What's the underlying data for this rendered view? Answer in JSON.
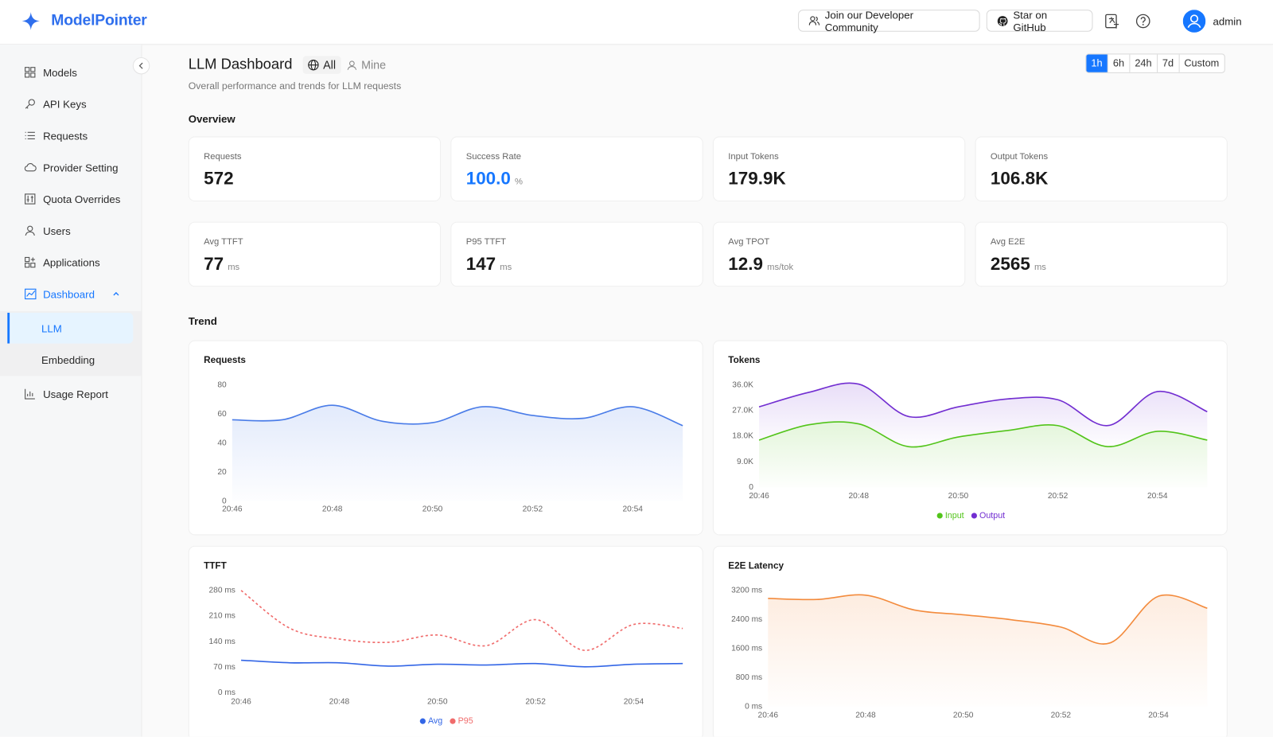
{
  "header": {
    "brand": "ModelPointer",
    "buttons": [
      "Join our Developer Community",
      "Star on GitHub"
    ],
    "user": "admin"
  },
  "sidebar": {
    "items": [
      "Models",
      "API Keys",
      "Requests",
      "Provider Setting",
      "Quota Overrides",
      "Users",
      "Applications",
      "Dashboard"
    ],
    "sub_items": [
      "LLM",
      "Embedding"
    ],
    "bottom_items": [
      "Usage Report"
    ]
  },
  "page": {
    "title": "LLM Dashboard",
    "scopes": [
      "All",
      "Mine"
    ],
    "subtitle": "Overall performance and trends for LLM requests",
    "ranges": [
      "1h",
      "6h",
      "24h",
      "7d",
      "Custom"
    ]
  },
  "overview": {
    "title": "Overview",
    "cards": [
      {
        "label": "Requests",
        "value": "572"
      },
      {
        "label": "Success Rate",
        "value": "100.0",
        "unit": "%",
        "color": "#1677ff"
      },
      {
        "label": "Input Tokens",
        "value": "179.9K"
      },
      {
        "label": "Output Tokens",
        "value": "106.8K"
      },
      {
        "label": "Avg TTFT",
        "value": "77",
        "unit": "ms"
      },
      {
        "label": "P95 TTFT",
        "value": "147",
        "unit": "ms"
      },
      {
        "label": "Avg TPOT",
        "value": "12.9",
        "unit": "ms/tok"
      },
      {
        "label": "Avg E2E",
        "value": "2565",
        "unit": "ms"
      }
    ]
  },
  "trend": {
    "title": "Trend"
  },
  "chart_data": [
    {
      "type": "line",
      "title": "Requests",
      "area": true,
      "categories": [
        "20:46",
        null,
        "20:48",
        null,
        "20:50",
        null,
        "20:52",
        null,
        "20:54",
        null
      ],
      "values": [
        56,
        56,
        66,
        55,
        54,
        65,
        59,
        57,
        65,
        52
      ],
      "color": "#4a7ce8",
      "ylim": [
        0,
        80
      ],
      "yticks": [
        0,
        20,
        40,
        60,
        80
      ],
      "grid": false
    },
    {
      "type": "line",
      "title": "Tokens",
      "area": true,
      "stacked": true,
      "legend": "bottom",
      "categories": [
        "20:46",
        null,
        "20:48",
        null,
        "20:50",
        null,
        "20:52",
        null,
        "20:54",
        null
      ],
      "series": [
        {
          "name": "Input",
          "color": "#52c41a",
          "values": [
            16600,
            22000,
            22300,
            14300,
            17700,
            20000,
            21700,
            14300,
            19700,
            16600
          ]
        },
        {
          "name": "Output",
          "color": "#722ed1",
          "values": [
            11700,
            11400,
            14000,
            10600,
            10600,
            11100,
            9100,
            7400,
            14000,
            10000
          ]
        }
      ],
      "ylim": [
        0,
        36000
      ],
      "yticks": [
        0,
        {
          "value": 9000,
          "label": "9.0K"
        },
        {
          "value": 18000,
          "label": "18.0K"
        },
        {
          "value": 27000,
          "label": "27.0K"
        },
        {
          "value": 36000,
          "label": "36.0K"
        }
      ],
      "grid": false
    },
    {
      "type": "line",
      "title": "TTFT",
      "area": false,
      "legend": "bottom",
      "categories": [
        "20:46",
        null,
        "20:48",
        null,
        "20:50",
        null,
        "20:52",
        null,
        "20:54",
        null
      ],
      "series": [
        {
          "name": "Avg",
          "color": "#3366e6",
          "values": [
            89,
            82,
            82,
            73,
            78,
            76,
            80,
            71,
            78,
            80
          ]
        },
        {
          "name": "P95",
          "color": "#f06b6b",
          "dashed": true,
          "values": [
            280,
            176,
            147,
            138,
            158,
            129,
            200,
            116,
            187,
            176
          ]
        }
      ],
      "ylim": [
        0,
        280
      ],
      "yticks": [
        {
          "value": 0,
          "label": "0 ms"
        },
        {
          "value": 70,
          "label": "70 ms"
        },
        {
          "value": 140,
          "label": "140 ms"
        },
        {
          "value": 210,
          "label": "210 ms"
        },
        {
          "value": 280,
          "label": "280 ms"
        }
      ],
      "grid": false
    },
    {
      "type": "line",
      "title": "E2E Latency",
      "area": true,
      "categories": [
        "20:46",
        null,
        "20:48",
        null,
        "20:50",
        null,
        "20:52",
        null,
        "20:54",
        null
      ],
      "values": [
        2980,
        2950,
        3070,
        2660,
        2530,
        2390,
        2190,
        1750,
        3040,
        2710
      ],
      "color": "#f38b3d",
      "ylim": [
        0,
        3200
      ],
      "yticks": [
        {
          "value": 0,
          "label": "0 ms"
        },
        {
          "value": 800,
          "label": "800 ms"
        },
        {
          "value": 1600,
          "label": "1600 ms"
        },
        {
          "value": 2400,
          "label": "2400 ms"
        },
        {
          "value": 3200,
          "label": "3200 ms"
        }
      ],
      "grid": false
    }
  ]
}
